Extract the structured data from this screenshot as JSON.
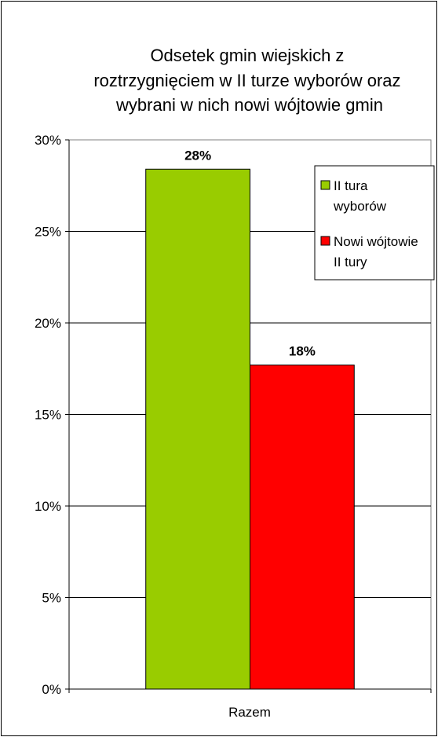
{
  "chart_data": {
    "type": "bar",
    "title_lines": [
      "Odsetek gmin wiejskich z",
      "roztrzygnięciem w II turze wyborów oraz",
      "wybrani w nich nowi wójtowie gmin"
    ],
    "categories": [
      "Razem"
    ],
    "series": [
      {
        "name": "II tura wyborów",
        "name_lines": [
          "II tura",
          "wyborów"
        ],
        "values": [
          0.284
        ],
        "label": "28%",
        "color": "#99cc00"
      },
      {
        "name": "Nowi wójtowie II tury",
        "name_lines": [
          "Nowi wójtowie",
          "II tury"
        ],
        "values": [
          0.177
        ],
        "label": "18%",
        "color": "#ff0000"
      }
    ],
    "ylim": [
      0,
      0.3
    ],
    "yticks": [
      {
        "value": 0.0,
        "label": "0%"
      },
      {
        "value": 0.05,
        "label": "5%"
      },
      {
        "value": 0.1,
        "label": "10%"
      },
      {
        "value": 0.15,
        "label": "15%"
      },
      {
        "value": 0.2,
        "label": "20%"
      },
      {
        "value": 0.25,
        "label": "25%"
      },
      {
        "value": 0.3,
        "label": "30%"
      }
    ],
    "grid": true,
    "legend_position": "top-right"
  }
}
